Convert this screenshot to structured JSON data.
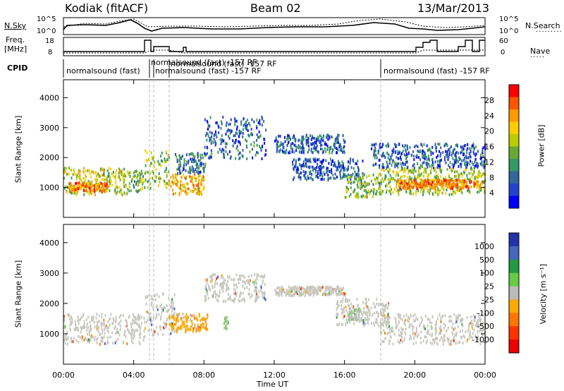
{
  "header": {
    "station": "Kodiak (fitACF)",
    "beam": "Beam 02",
    "date": "13/Mar/2013"
  },
  "left_labels": {
    "nsky": "N.Sky",
    "freq_line1": "Freq.",
    "freq_line2": "[MHz]",
    "cpid": "CPID"
  },
  "right_labels": {
    "nsearch": "N.Search",
    "nave": "Nave"
  },
  "strip_ticks": {
    "noise_left_top": "10^5",
    "noise_left_bottom": "10^0",
    "noise_right_top": "10^5",
    "noise_right_bottom": "10^0",
    "freq_top": "18",
    "freq_bottom": "8",
    "nave_top": "60",
    "nave_bottom": "0"
  },
  "cpid_labels": [
    "normalsound (fast)",
    "normalsound (fast) -157 RF",
    "normalsound (fast) -157 RF",
    "normalsound (fast) -157 RF",
    "normalsound (fast) -157 RF"
  ],
  "panels": {
    "power": {
      "ylabel": "Slant Range [km]",
      "colorbar_label": "Power [dB]",
      "colorbar_ticks": [
        "28",
        "24",
        "20",
        "16",
        "12",
        "8",
        "4"
      ]
    },
    "velocity": {
      "ylabel": "Slant Range [km]",
      "colorbar_label": "Velocity [m s⁻¹]",
      "colorbar_ticks": [
        "1000",
        "500",
        "100",
        "25",
        "-25",
        "-100",
        "-500",
        "-1000"
      ]
    }
  },
  "xaxis_label": "Time UT",
  "colors": {
    "power_scale": [
      "#ff0000",
      "#ff5500",
      "#ff9900",
      "#ffcc00",
      "#bbcc00",
      "#66aa33",
      "#339966",
      "#336699",
      "#2244cc",
      "#0000ff"
    ],
    "velocity_scale": [
      "#2233aa",
      "#4466bb",
      "#229944",
      "#66cc44",
      "#bbbbbb",
      "#ffaa00",
      "#ff7700",
      "#ff3300",
      "#ee0000"
    ],
    "ground_scatter": "#c8c8c0"
  },
  "chart_data": {
    "type": "heatmap",
    "x_unit": "hours UT",
    "x_range": [
      0,
      24
    ],
    "x_ticks": [
      "00:00",
      "04:00",
      "08:00",
      "12:00",
      "16:00",
      "20:00",
      "00:00"
    ],
    "y_range_km": [
      0,
      4600
    ],
    "y_ticks": [
      1000,
      2000,
      3000,
      4000
    ],
    "power_db_range": [
      0,
      32
    ],
    "velocity_range": [
      -1200,
      1200
    ],
    "power_regions": [
      {
        "t0": 0.0,
        "t1": 3.6,
        "r0": 800,
        "r1": 1700,
        "db": 18
      },
      {
        "t0": 0.3,
        "t1": 2.5,
        "r0": 900,
        "r1": 1200,
        "db": 26
      },
      {
        "t0": 3.6,
        "t1": 4.6,
        "r0": 900,
        "r1": 1600,
        "db": 14
      },
      {
        "t0": 4.6,
        "t1": 6.0,
        "r0": 1000,
        "r1": 2300,
        "db": 16
      },
      {
        "t0": 6.0,
        "t1": 8.0,
        "r0": 800,
        "r1": 1500,
        "db": 22
      },
      {
        "t0": 6.3,
        "t1": 8.1,
        "r0": 1500,
        "r1": 2200,
        "db": 8
      },
      {
        "t0": 8.0,
        "t1": 11.5,
        "r0": 2000,
        "r1": 3400,
        "db": 6
      },
      {
        "t0": 12.0,
        "t1": 16.0,
        "r0": 2200,
        "r1": 2800,
        "db": 6
      },
      {
        "t0": 13.0,
        "t1": 17.0,
        "r0": 1300,
        "r1": 2000,
        "db": 5
      },
      {
        "t0": 16.0,
        "t1": 18.0,
        "r0": 700,
        "r1": 1500,
        "db": 14
      },
      {
        "t0": 18.0,
        "t1": 24.0,
        "r0": 800,
        "r1": 1700,
        "db": 16
      },
      {
        "t0": 19.0,
        "t1": 23.8,
        "r0": 1000,
        "r1": 1300,
        "db": 26
      },
      {
        "t0": 17.5,
        "t1": 24.0,
        "r0": 1700,
        "r1": 2500,
        "db": 6
      }
    ],
    "velocity_regions": [
      {
        "t0": 0.0,
        "t1": 4.6,
        "r0": 700,
        "r1": 1700,
        "v": 0
      },
      {
        "t0": 4.6,
        "t1": 6.3,
        "r0": 1000,
        "r1": 2400,
        "v": 0
      },
      {
        "t0": 6.0,
        "t1": 8.2,
        "r0": 1100,
        "r1": 1700,
        "v": -300
      },
      {
        "t0": 8.0,
        "t1": 11.5,
        "r0": 2100,
        "r1": 3000,
        "v": 0
      },
      {
        "t0": 9.1,
        "t1": 9.4,
        "r0": 1200,
        "r1": 1600,
        "v": 80
      },
      {
        "t0": 12.0,
        "t1": 16.0,
        "r0": 2300,
        "r1": 2600,
        "v": 0
      },
      {
        "t0": 15.5,
        "t1": 18.5,
        "r0": 1300,
        "r1": 2200,
        "v": 0
      },
      {
        "t0": 16.2,
        "t1": 17.0,
        "r0": 1500,
        "r1": 1900,
        "v": 80
      },
      {
        "t0": 18.0,
        "t1": 24.0,
        "r0": 700,
        "r1": 1700,
        "v": 0
      }
    ]
  }
}
